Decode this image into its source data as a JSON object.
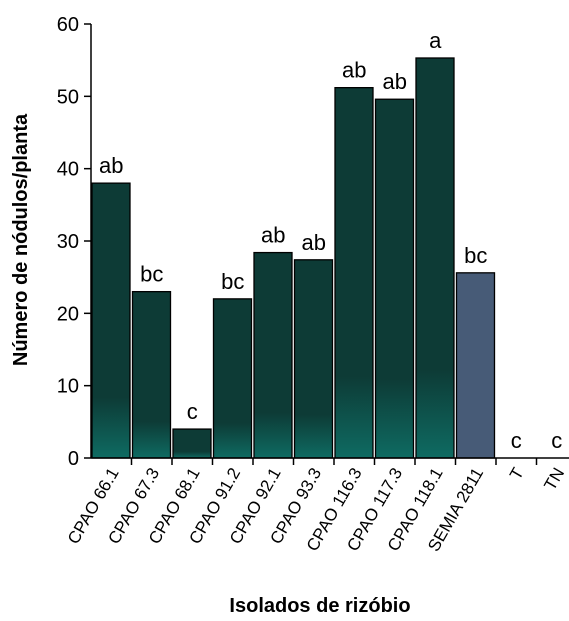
{
  "chart_data": {
    "type": "bar",
    "title": "",
    "xlabel": "Isolados de rizóbio",
    "ylabel": "Número de nódulos/planta",
    "ylim": [
      0,
      60
    ],
    "yticks": [
      "0",
      "10",
      "20",
      "30",
      "40",
      "50",
      "60"
    ],
    "grid": false,
    "legend": "none",
    "categories": [
      "CPAO 66.1",
      "CPAO 67.3",
      "CPAO 68.1",
      "CPAO 91.2",
      "CPAO 92.1",
      "CPAO 93.3",
      "CPAO 116.3",
      "CPAO 117.3",
      "CPAO 118.1",
      "SEMIA 2811",
      "T",
      "TN"
    ],
    "values": [
      38,
      23,
      4,
      22,
      28.4,
      27.4,
      51.2,
      49.6,
      55.3,
      25.6,
      0,
      0
    ],
    "labels": [
      "ab",
      "bc",
      "c",
      "bc",
      "ab",
      "ab",
      "ab",
      "ab",
      "a",
      "bc",
      "c",
      "c"
    ],
    "colors": {
      "bar": "#0d3b36",
      "bar_highlight": "#0e6b62",
      "reference_bar": "#475b77",
      "axis": "#000000"
    },
    "reference_category": "SEMIA 2811"
  }
}
